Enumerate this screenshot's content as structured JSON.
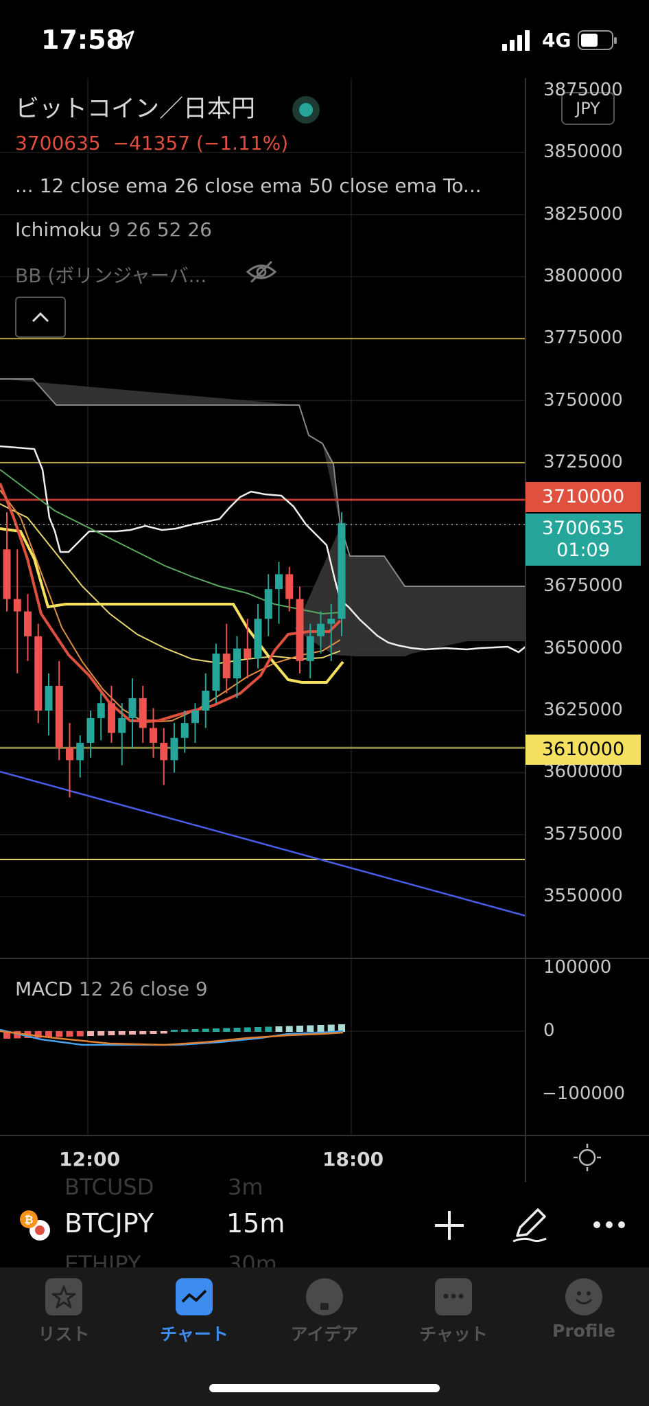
{
  "status_bar": {
    "time": "17:58",
    "network": "4G"
  },
  "header": {
    "title": "ビットコイン／日本円",
    "price": "3700635",
    "change": "−41357 (−1.11%)",
    "currency_button": "JPY"
  },
  "indicators": {
    "ema_line": "...  12 close ema 26 close ema 50 close ema To...",
    "ichimoku_name": "Ichimoku",
    "ichimoku_params": "9 26 52 26",
    "bb_name": "BB (ボリンジャーバ...",
    "macd_name": "MACD",
    "macd_params": "12 26 close 9"
  },
  "price_axis": {
    "labels": [
      "3875000",
      "3850000",
      "3825000",
      "3800000",
      "3775000",
      "3750000",
      "3725000",
      "3675000",
      "3650000",
      "3625000",
      "3600000",
      "3575000",
      "3550000"
    ],
    "badge_red": "3710000",
    "badge_current_price": "3700635",
    "badge_countdown": "01:09",
    "badge_yellow": "3610000"
  },
  "macd_axis": {
    "labels": [
      "100000",
      "0",
      "−100000"
    ]
  },
  "time_axis": {
    "labels": [
      "12:00",
      "18:00"
    ]
  },
  "symbol_bar": {
    "symbol": "BTCJPY",
    "interval": "15m",
    "ghost_prev_symbol": "BTCUSD",
    "ghost_prev_interval": "3m",
    "ghost_next_symbol": "ETHJPY",
    "ghost_next_interval": "30m"
  },
  "tabs": [
    {
      "label": "リスト",
      "icon": "star-icon"
    },
    {
      "label": "チャート",
      "icon": "chart-icon",
      "active": true
    },
    {
      "label": "アイデア",
      "icon": "lightbulb-icon"
    },
    {
      "label": "チャット",
      "icon": "chat-icon"
    },
    {
      "label": "Profile",
      "icon": "smiley-icon"
    }
  ],
  "colors": {
    "bull": "#26a69a",
    "bear": "#ef5350",
    "accent": "#3d8cf0",
    "price_red": "#e0503f"
  },
  "chart_data": {
    "type": "candlestick",
    "symbol": "BTCJPY",
    "interval": "15m",
    "ylim": [
      3530000,
      3880000
    ],
    "horizontal_lines": [
      3775000,
      3725000,
      3710000,
      3610000,
      3565000
    ],
    "current_price": 3700635,
    "candles": [
      {
        "o": 3690000,
        "h": 3705000,
        "l": 3665000,
        "c": 3670000
      },
      {
        "o": 3670000,
        "h": 3690000,
        "l": 3640000,
        "c": 3665000
      },
      {
        "o": 3665000,
        "h": 3672000,
        "l": 3645000,
        "c": 3655000
      },
      {
        "o": 3655000,
        "h": 3660000,
        "l": 3620000,
        "c": 3625000
      },
      {
        "o": 3625000,
        "h": 3640000,
        "l": 3615000,
        "c": 3635000
      },
      {
        "o": 3635000,
        "h": 3645000,
        "l": 3605000,
        "c": 3610000
      },
      {
        "o": 3610000,
        "h": 3620000,
        "l": 3590000,
        "c": 3605000
      },
      {
        "o": 3605000,
        "h": 3615000,
        "l": 3598000,
        "c": 3612000
      },
      {
        "o": 3612000,
        "h": 3625000,
        "l": 3606000,
        "c": 3622000
      },
      {
        "o": 3622000,
        "h": 3632000,
        "l": 3613000,
        "c": 3628000
      },
      {
        "o": 3628000,
        "h": 3635000,
        "l": 3612000,
        "c": 3616000
      },
      {
        "o": 3616000,
        "h": 3628000,
        "l": 3603000,
        "c": 3622000
      },
      {
        "o": 3622000,
        "h": 3638000,
        "l": 3610000,
        "c": 3630000
      },
      {
        "o": 3630000,
        "h": 3635000,
        "l": 3612000,
        "c": 3618000
      },
      {
        "o": 3618000,
        "h": 3626000,
        "l": 3606000,
        "c": 3612000
      },
      {
        "o": 3612000,
        "h": 3618000,
        "l": 3595000,
        "c": 3605000
      },
      {
        "o": 3605000,
        "h": 3620000,
        "l": 3600000,
        "c": 3614000
      },
      {
        "o": 3614000,
        "h": 3625000,
        "l": 3608000,
        "c": 3620000
      },
      {
        "o": 3620000,
        "h": 3628000,
        "l": 3612000,
        "c": 3625000
      },
      {
        "o": 3625000,
        "h": 3640000,
        "l": 3618000,
        "c": 3633000
      },
      {
        "o": 3633000,
        "h": 3652000,
        "l": 3628000,
        "c": 3648000
      },
      {
        "o": 3648000,
        "h": 3660000,
        "l": 3632000,
        "c": 3638000
      },
      {
        "o": 3638000,
        "h": 3655000,
        "l": 3630000,
        "c": 3650000
      },
      {
        "o": 3650000,
        "h": 3662000,
        "l": 3638000,
        "c": 3646000
      },
      {
        "o": 3646000,
        "h": 3668000,
        "l": 3642000,
        "c": 3662000
      },
      {
        "o": 3662000,
        "h": 3680000,
        "l": 3655000,
        "c": 3674000
      },
      {
        "o": 3674000,
        "h": 3685000,
        "l": 3660000,
        "c": 3680000
      },
      {
        "o": 3680000,
        "h": 3683000,
        "l": 3665000,
        "c": 3670000
      },
      {
        "o": 3670000,
        "h": 3675000,
        "l": 3640000,
        "c": 3645000
      },
      {
        "o": 3645000,
        "h": 3660000,
        "l": 3638000,
        "c": 3655000
      },
      {
        "o": 3655000,
        "h": 3665000,
        "l": 3648000,
        "c": 3660000
      },
      {
        "o": 3660000,
        "h": 3668000,
        "l": 3645000,
        "c": 3662000
      },
      {
        "o": 3662000,
        "h": 3705000,
        "l": 3655000,
        "c": 3700635
      }
    ]
  }
}
